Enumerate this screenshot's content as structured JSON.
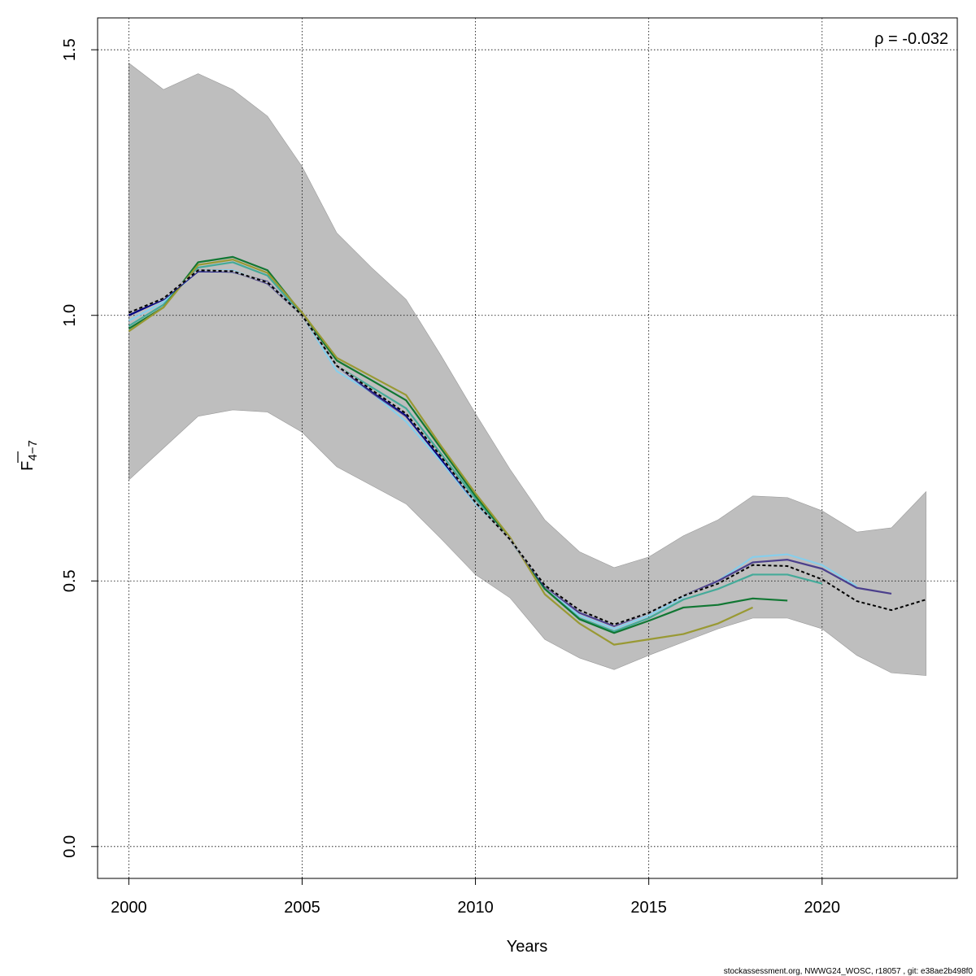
{
  "chart_data": {
    "type": "line",
    "xlabel": "Years",
    "ylabel": {
      "main": "F",
      "sub": "4−7"
    },
    "xlim": [
      1999.1,
      2023.9
    ],
    "ylim": [
      -0.06,
      1.56
    ],
    "x_ticks": [
      2000,
      2005,
      2010,
      2015,
      2020
    ],
    "x_tick_labels": [
      "2000",
      "2005",
      "2010",
      "2015",
      "2020"
    ],
    "y_ticks": [
      0.0,
      0.5,
      1.0,
      1.5
    ],
    "y_tick_labels": [
      "0.0",
      "0.5",
      "1.0",
      "1.5"
    ],
    "grid": true,
    "annotation": "ρ = -0.032",
    "footer": "stockassessment.org, NWWG24_WOSC, r18057 , git: e38ae2b498f0",
    "band": {
      "color": "#bebebe",
      "x": [
        2000,
        2001,
        2002,
        2003,
        2004,
        2005,
        2006,
        2007,
        2008,
        2009,
        2010,
        2011,
        2012,
        2013,
        2014,
        2015,
        2016,
        2017,
        2018,
        2019,
        2020,
        2021,
        2022,
        2023
      ],
      "upper": [
        1.475,
        1.425,
        1.455,
        1.425,
        1.375,
        1.28,
        1.155,
        1.09,
        1.03,
        0.925,
        0.815,
        0.71,
        0.615,
        0.555,
        0.525,
        0.545,
        0.585,
        0.615,
        0.66,
        0.657,
        0.632,
        0.592,
        0.6,
        0.668
      ],
      "lower": [
        0.69,
        0.75,
        0.81,
        0.822,
        0.818,
        0.78,
        0.715,
        0.68,
        0.645,
        0.58,
        0.512,
        0.468,
        0.39,
        0.355,
        0.333,
        0.36,
        0.385,
        0.41,
        0.43,
        0.43,
        0.41,
        0.36,
        0.327,
        0.322
      ]
    },
    "series": [
      {
        "color": "#87ceeb",
        "dash": false,
        "x": [
          2000,
          2001,
          2002,
          2003,
          2004,
          2005,
          2006,
          2007,
          2008,
          2009,
          2010,
          2011,
          2012,
          2013,
          2014,
          2015,
          2016,
          2017,
          2018,
          2019,
          2020,
          2021
        ],
        "values": [
          0.99,
          1.025,
          1.085,
          1.085,
          1.06,
          1.0,
          0.895,
          0.855,
          0.8,
          0.725,
          0.645,
          0.58,
          0.485,
          0.435,
          0.41,
          0.435,
          0.47,
          0.5,
          0.545,
          0.55,
          0.53,
          0.49
        ]
      },
      {
        "color": "#44aa99",
        "dash": false,
        "x": [
          2000,
          2001,
          2002,
          2003,
          2004,
          2005,
          2006,
          2007,
          2008,
          2009,
          2010,
          2011,
          2012,
          2013,
          2014,
          2015,
          2016,
          2017,
          2018,
          2019,
          2020
        ],
        "values": [
          0.98,
          1.02,
          1.09,
          1.1,
          1.075,
          1.0,
          0.905,
          0.865,
          0.825,
          0.74,
          0.655,
          0.578,
          0.485,
          0.43,
          0.405,
          0.43,
          0.465,
          0.485,
          0.512,
          0.512,
          0.495
        ]
      },
      {
        "color": "#117733",
        "dash": false,
        "x": [
          2000,
          2001,
          2002,
          2003,
          2004,
          2005,
          2006,
          2007,
          2008,
          2009,
          2010,
          2011,
          2012,
          2013,
          2014,
          2015,
          2016,
          2017,
          2018,
          2019
        ],
        "values": [
          0.975,
          1.015,
          1.1,
          1.11,
          1.085,
          1.003,
          0.915,
          0.878,
          0.84,
          0.75,
          0.66,
          0.58,
          0.485,
          0.428,
          0.402,
          0.425,
          0.45,
          0.455,
          0.467,
          0.463
        ]
      },
      {
        "color": "#999933",
        "dash": false,
        "x": [
          2000,
          2001,
          2002,
          2003,
          2004,
          2005,
          2006,
          2007,
          2008,
          2009,
          2010,
          2011,
          2012,
          2013,
          2014,
          2015,
          2016,
          2017,
          2018
        ],
        "values": [
          0.97,
          1.015,
          1.095,
          1.105,
          1.08,
          1.005,
          0.92,
          0.885,
          0.85,
          0.755,
          0.665,
          0.582,
          0.475,
          0.42,
          0.38,
          0.39,
          0.4,
          0.42,
          0.45
        ]
      },
      {
        "color": "#4b3f8c",
        "dash": false,
        "x": [
          2000,
          2001,
          2002,
          2003,
          2004,
          2005,
          2006,
          2007,
          2008,
          2009,
          2010,
          2011,
          2012,
          2013,
          2014,
          2015,
          2016,
          2017,
          2018,
          2019,
          2020,
          2021,
          2022
        ],
        "values": [
          1.005,
          1.03,
          1.085,
          1.083,
          1.06,
          1.0,
          0.905,
          0.855,
          0.81,
          0.73,
          0.648,
          0.578,
          0.49,
          0.44,
          0.415,
          0.44,
          0.472,
          0.5,
          0.535,
          0.54,
          0.523,
          0.487,
          0.476
        ]
      },
      {
        "color": "#000080",
        "dash": false,
        "x": [
          2000,
          2001,
          2002,
          2003,
          2004,
          2005,
          2006,
          2007,
          2008,
          2009,
          2010,
          2011,
          2012
        ],
        "values": [
          1.0,
          1.03,
          1.083,
          1.082,
          1.063,
          1.0,
          0.905,
          0.858,
          0.812,
          0.73,
          0.648,
          0.578,
          0.49
        ]
      },
      {
        "color": "#000000",
        "dash": true,
        "x": [
          2000,
          2001,
          2002,
          2003,
          2004,
          2005,
          2006,
          2007,
          2008,
          2009,
          2010,
          2011,
          2012,
          2013,
          2014,
          2015,
          2016,
          2017,
          2018,
          2019,
          2020,
          2021,
          2022,
          2023
        ],
        "values": [
          1.005,
          1.032,
          1.085,
          1.083,
          1.062,
          1.0,
          0.905,
          0.86,
          0.815,
          0.735,
          0.648,
          0.578,
          0.492,
          0.445,
          0.418,
          0.44,
          0.472,
          0.495,
          0.53,
          0.528,
          0.503,
          0.462,
          0.445,
          0.465
        ]
      }
    ]
  }
}
